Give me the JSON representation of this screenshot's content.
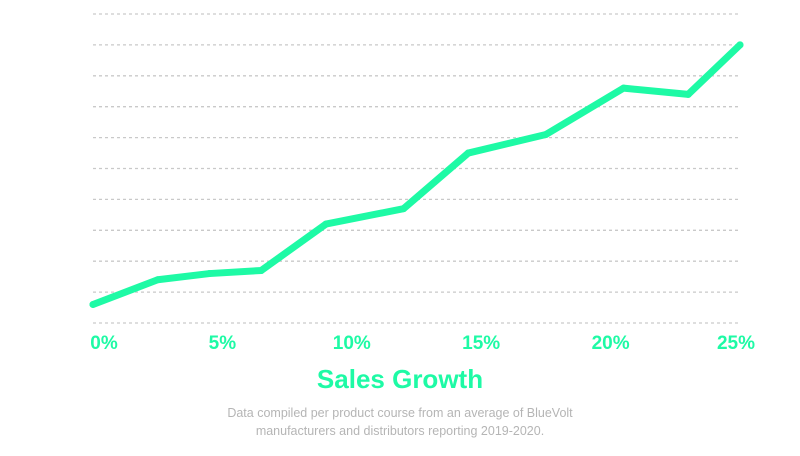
{
  "chart_data": {
    "type": "line",
    "title": "Sales Growth",
    "caption": "Data compiled per product course from an average of BlueVolt manufacturers and distributors reporting 2019-2020.",
    "xlabel": "",
    "ylabel": "",
    "x_tick_labels": [
      "0%",
      "5%",
      "10%",
      "15%",
      "20%",
      "25%"
    ],
    "xlim": [
      0,
      25
    ],
    "ylim": [
      0,
      10
    ],
    "grid": true,
    "legend": "none",
    "series": [
      {
        "x": [
          0,
          2.5,
          4.5,
          6.5,
          9,
          12,
          14.5,
          17.5,
          20.5,
          23,
          25
        ],
        "y": [
          0.6,
          1.4,
          1.6,
          1.7,
          3.2,
          3.7,
          5.5,
          6.1,
          7.6,
          7.4,
          9.0
        ]
      }
    ],
    "colors": {
      "line": "#1efaa5",
      "accent_text": "#1efaa5",
      "grid": "#c9c9c9",
      "caption": "#b5b5b5"
    }
  }
}
